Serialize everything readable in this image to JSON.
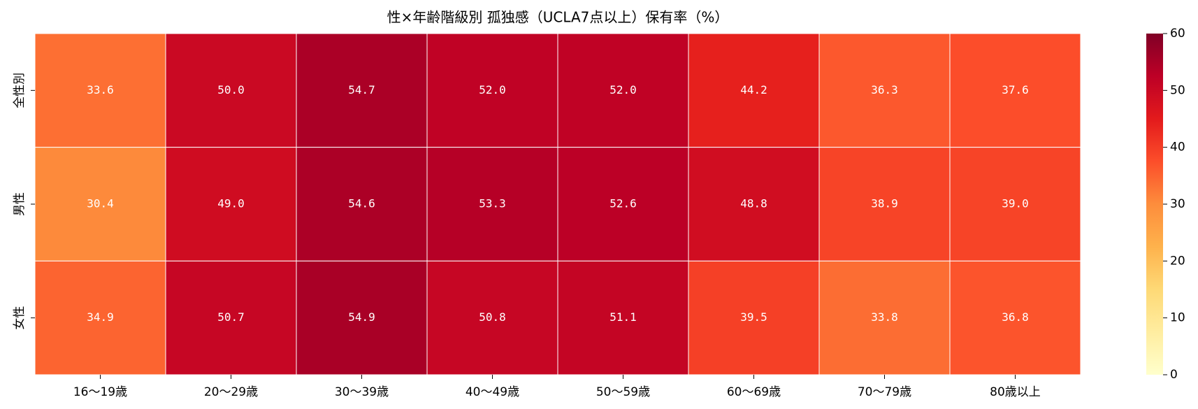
{
  "chart_data": {
    "type": "heatmap",
    "title": "性×年齢階級別 孤独感（UCLA7点以上）保有率（%）",
    "x_categories": [
      "16～19歳",
      "20～29歳",
      "30～39歳",
      "40～49歳",
      "50～59歳",
      "60～69歳",
      "70～79歳",
      "80歳以上"
    ],
    "y_categories": [
      "全性別",
      "男性",
      "女性"
    ],
    "values": [
      [
        33.6,
        50.0,
        54.7,
        52.0,
        52.0,
        44.2,
        36.3,
        37.6
      ],
      [
        30.4,
        49.0,
        54.6,
        53.3,
        52.6,
        48.8,
        38.9,
        39.0
      ],
      [
        34.9,
        50.7,
        54.9,
        50.8,
        51.1,
        39.5,
        33.8,
        36.8
      ]
    ],
    "value_labels": [
      [
        "33.6",
        "50.0",
        "54.7",
        "52.0",
        "52.0",
        "44.2",
        "36.3",
        "37.6"
      ],
      [
        "30.4",
        "49.0",
        "54.6",
        "53.3",
        "52.6",
        "48.8",
        "38.9",
        "39.0"
      ],
      [
        "34.9",
        "50.7",
        "54.9",
        "50.8",
        "51.1",
        "39.5",
        "33.8",
        "36.8"
      ]
    ],
    "zlim": [
      0,
      60
    ],
    "zticks": [
      0,
      10,
      20,
      30,
      40,
      50,
      60
    ],
    "colormap": [
      "#ffffcc",
      "#ffeda0",
      "#fed976",
      "#feb24c",
      "#fd8d3c",
      "#fc4e2a",
      "#e31a1c",
      "#bd0026",
      "#800026"
    ],
    "label_color": "#ffffff"
  }
}
